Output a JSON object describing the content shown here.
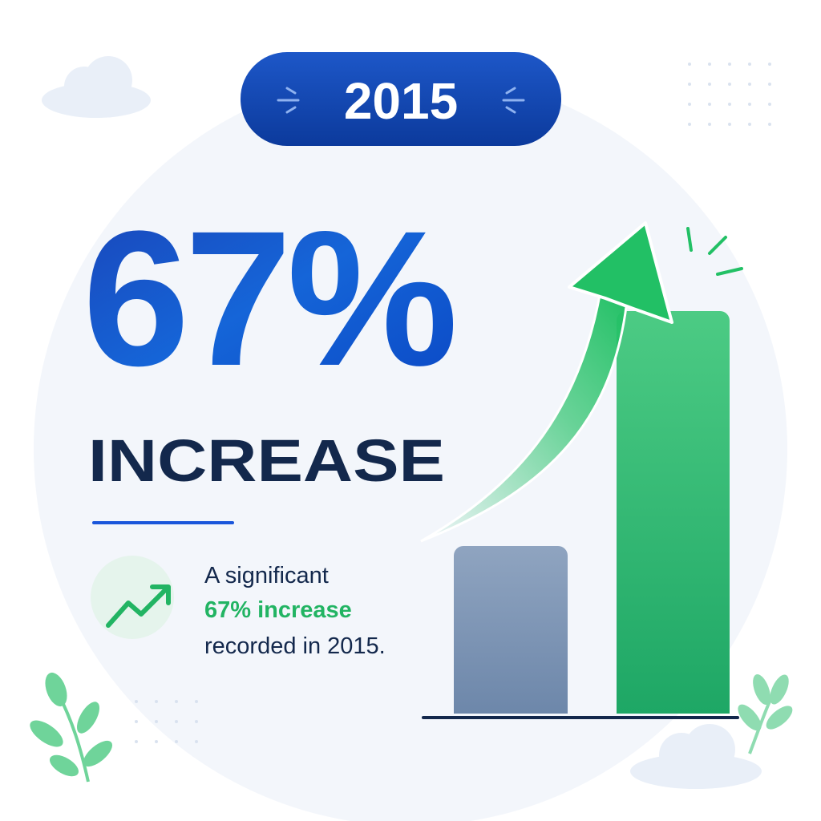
{
  "badge": {
    "year": "2015"
  },
  "headline": {
    "value": "67%",
    "label": "INCREASE"
  },
  "description": {
    "lines": [
      "A significant",
      "67% increase",
      "recorded in 2015."
    ]
  }
}
